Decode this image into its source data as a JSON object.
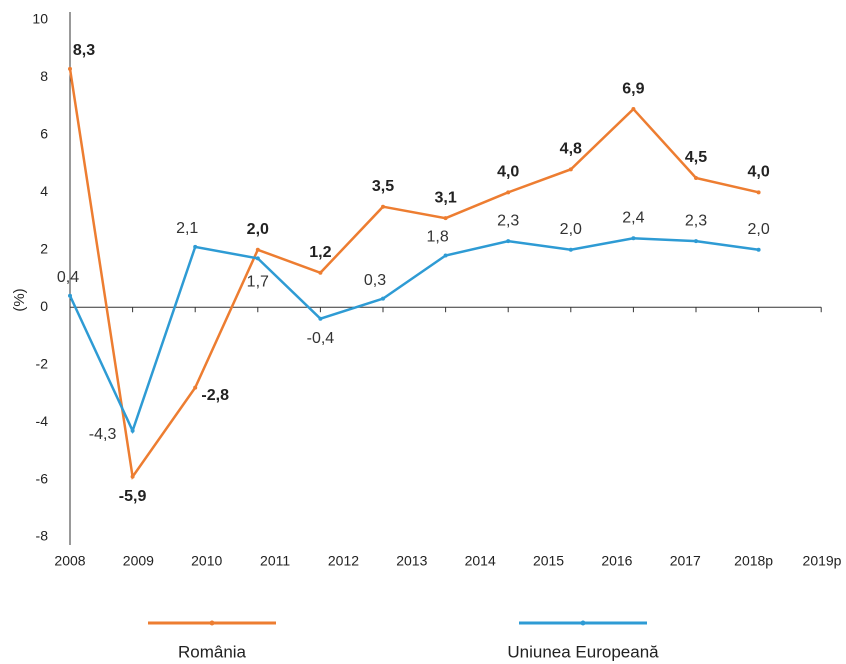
{
  "chart_data": {
    "type": "line",
    "y_label": "(%)",
    "categories": [
      "2008",
      "2009",
      "2010",
      "2011",
      "2012",
      "2013",
      "2014",
      "2015",
      "2016",
      "2017",
      "2018p",
      "2019p"
    ],
    "series": [
      {
        "name": "România",
        "color": "#ed7d31",
        "values": [
          8.3,
          -5.9,
          -2.8,
          2.0,
          1.2,
          3.5,
          3.1,
          4.0,
          4.8,
          6.9,
          4.5,
          4.0
        ],
        "value_labels": [
          "8,3",
          "-5,9",
          "-2,8",
          "2,0",
          "1,2",
          "3,5",
          "3,1",
          "4,0",
          "4,8",
          "6,9",
          "4,5",
          "4,0"
        ]
      },
      {
        "name": "Uniunea Europeană",
        "color": "#2e9bd4",
        "values": [
          0.4,
          -4.3,
          2.1,
          1.7,
          -0.4,
          0.3,
          1.8,
          2.3,
          2.0,
          2.4,
          2.3,
          2.0
        ],
        "value_labels": [
          "0,4",
          "-4,3",
          "2,1",
          "1,7",
          "-0,4",
          "0,3",
          "1,8",
          "2,3",
          "2,0",
          "2,4",
          "2,3",
          "2,0"
        ]
      }
    ],
    "ylim": [
      -8,
      10
    ],
    "yticks": [
      -8,
      -6,
      -4,
      -2,
      0,
      2,
      4,
      6,
      8,
      10
    ],
    "grid": false,
    "legend": "bottom"
  }
}
